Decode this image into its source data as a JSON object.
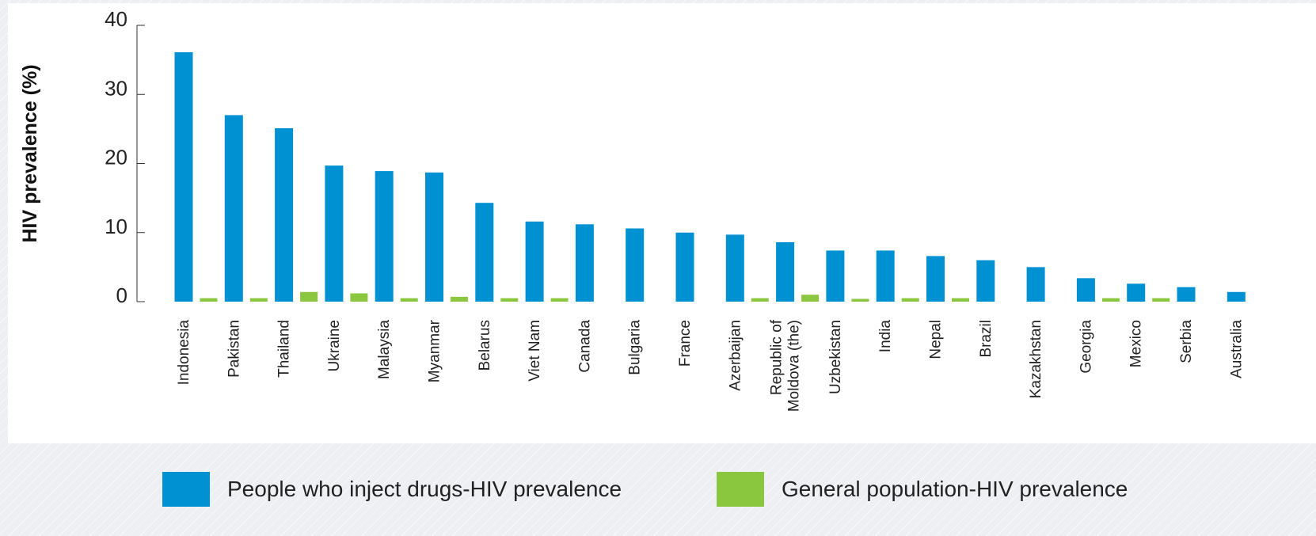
{
  "chart_data": {
    "type": "bar",
    "ylabel": "HIV prevalence (%)",
    "xlabel": "",
    "ylim": [
      0,
      40
    ],
    "yticks": [
      0,
      10,
      20,
      30,
      40
    ],
    "grid": false,
    "legend_position": "bottom",
    "categories": [
      "Indonesia",
      "Pakistan",
      "Thailand",
      "Ukraine",
      "Malaysia",
      "Myanmar",
      "Belarus",
      "Viet Nam",
      "Canada",
      "Bulgaria",
      "France",
      "Azerbaijan",
      "Republic of Moldova (the)",
      "Uzbekistan",
      "India",
      "Nepal",
      "Brazil",
      "Kazakhstan",
      "Georgia",
      "Mexico",
      "Serbia",
      "Australia"
    ],
    "series": [
      {
        "name": "People who inject drugs-HIV prevalence",
        "color": "#0091d2",
        "values": [
          36.1,
          27.0,
          25.1,
          19.7,
          18.9,
          18.7,
          14.3,
          11.6,
          11.2,
          10.6,
          10.0,
          9.7,
          8.6,
          7.4,
          7.4,
          6.6,
          6.0,
          5.0,
          3.4,
          2.6,
          2.1,
          1.4
        ]
      },
      {
        "name": "General population-HIV prevalence",
        "color": "#8bc63f",
        "values": [
          0.5,
          0.5,
          1.4,
          1.2,
          0.5,
          0.7,
          0.5,
          0.5,
          null,
          null,
          null,
          0.5,
          1.0,
          0.4,
          0.5,
          0.5,
          null,
          null,
          0.5,
          0.5,
          null,
          null
        ]
      }
    ]
  }
}
